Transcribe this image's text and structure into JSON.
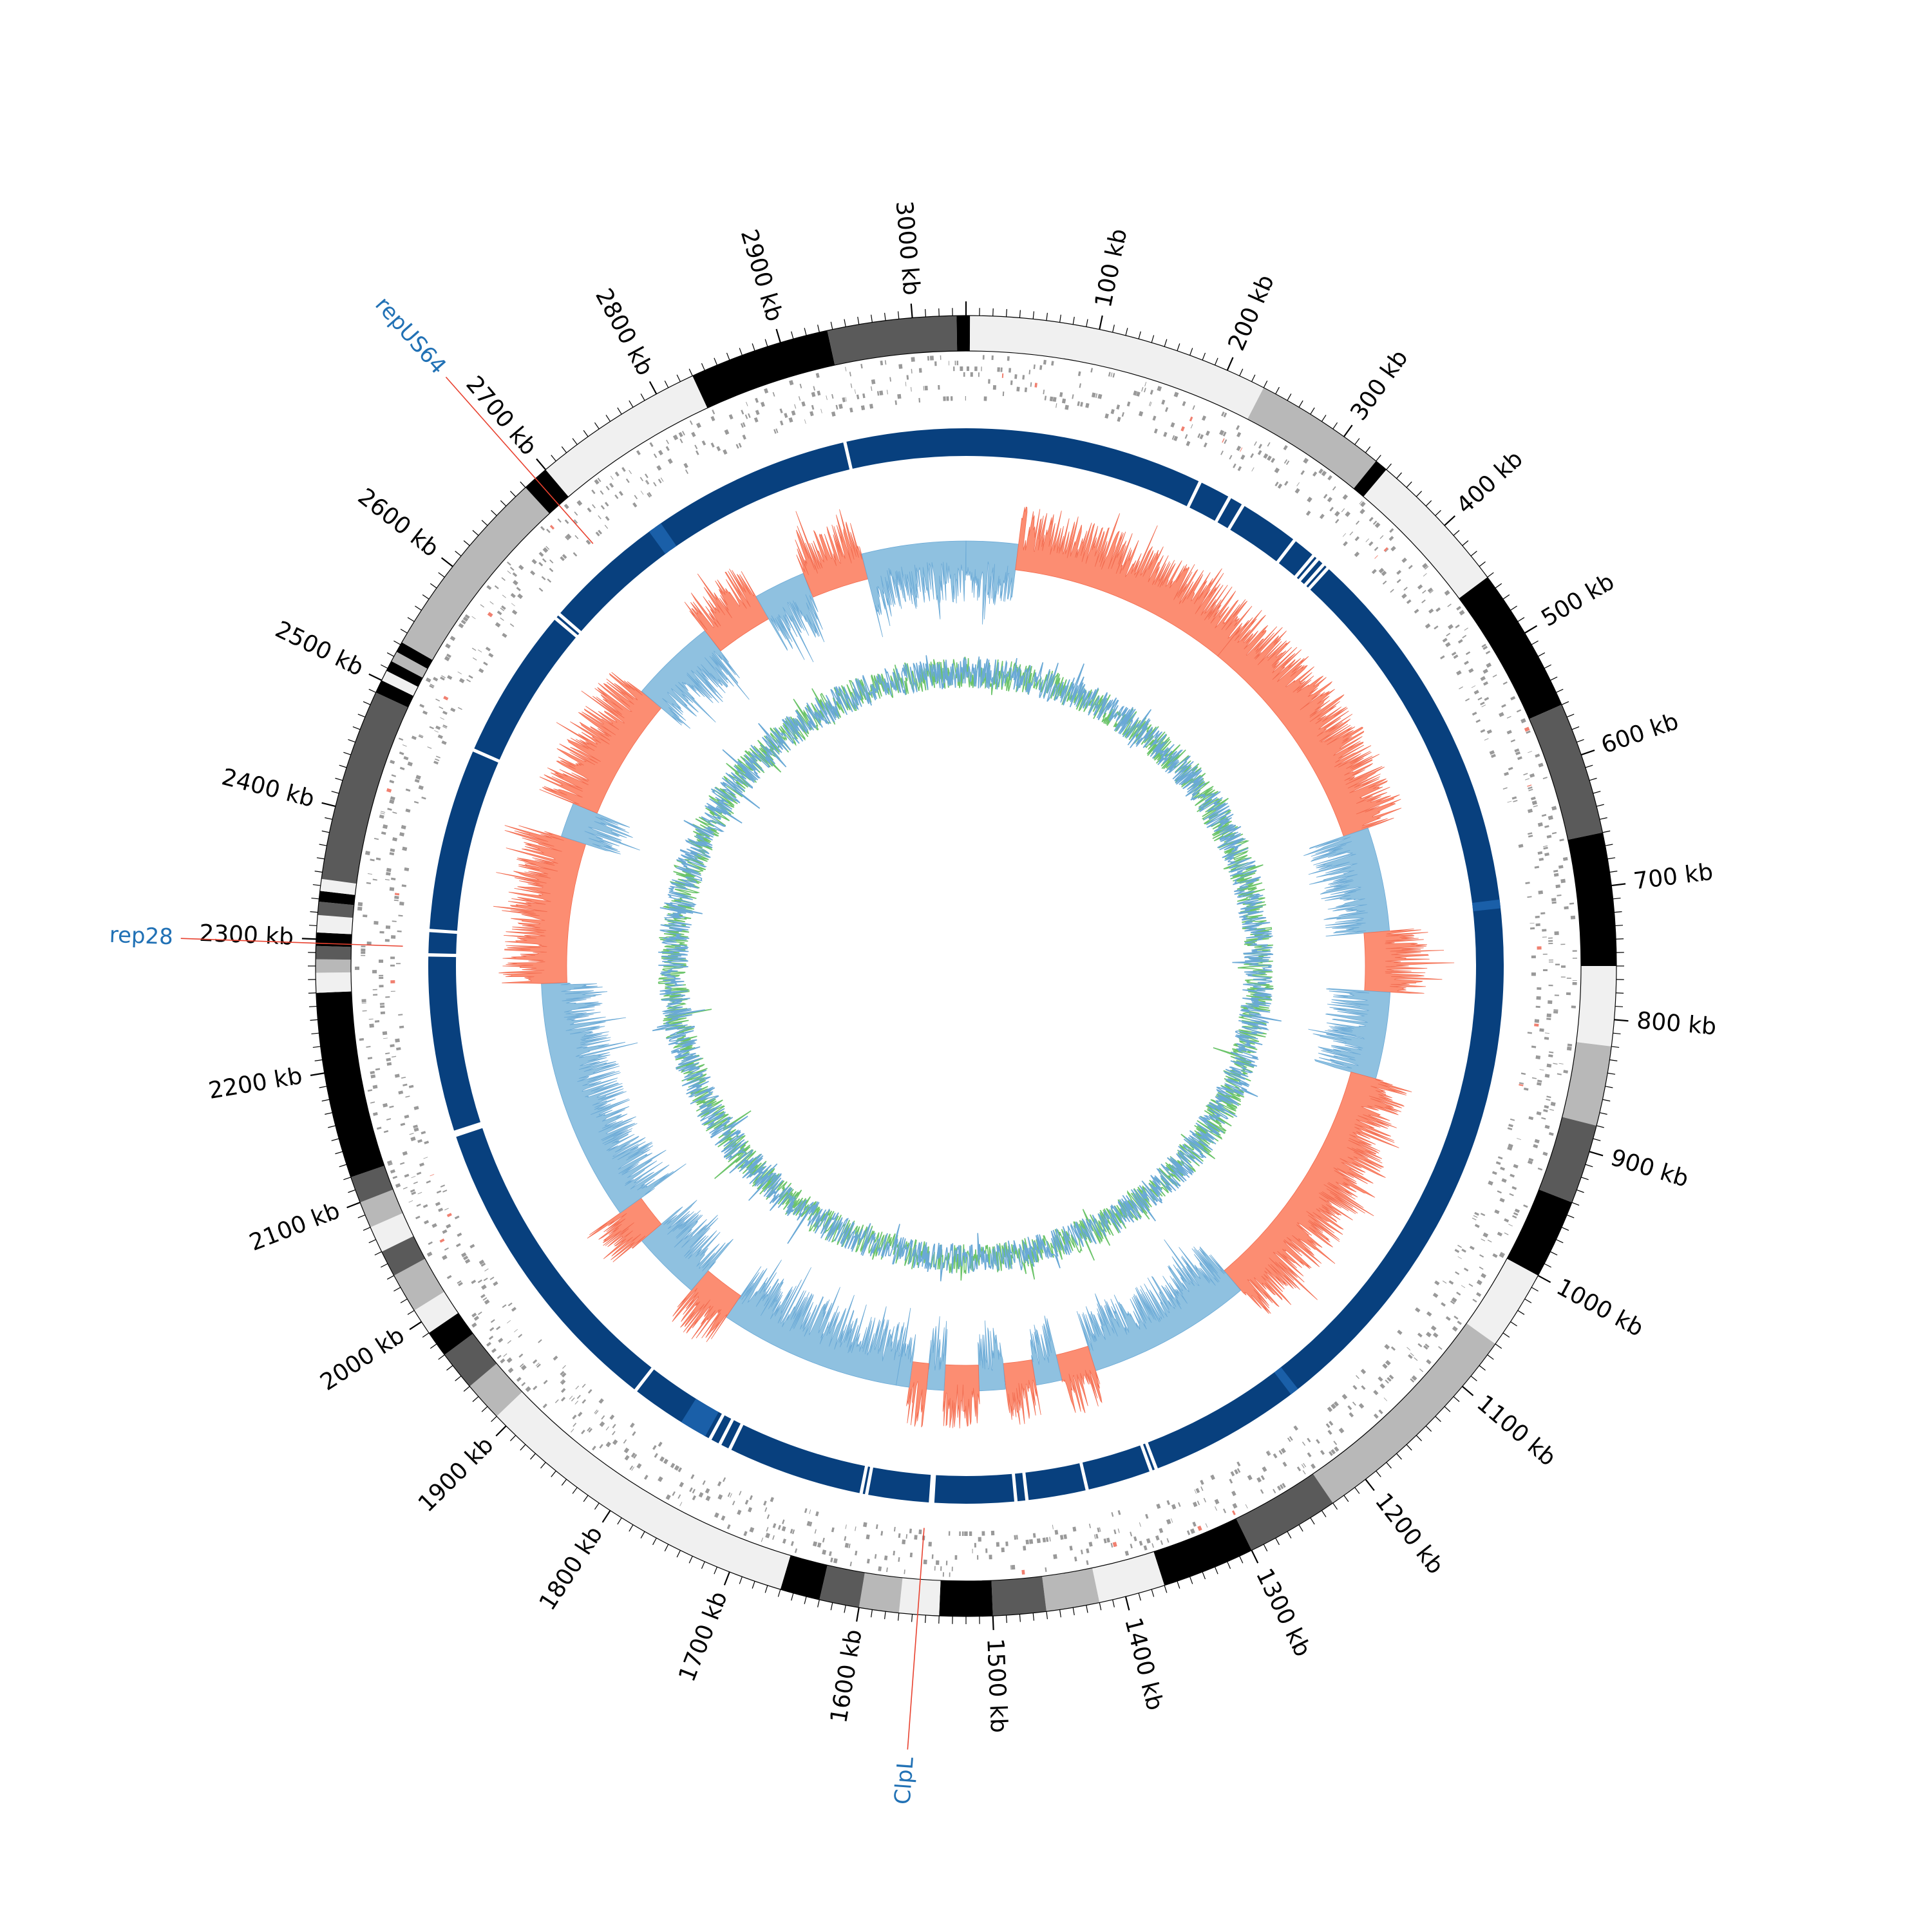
{
  "genome": {
    "length_kb": 3040,
    "unit": "kb",
    "ticks": [
      "100 kb",
      "200 kb",
      "300 kb",
      "400 kb",
      "500 kb",
      "600 kb",
      "700 kb",
      "800 kb",
      "900 kb",
      "1000 kb",
      "1100 kb",
      "1200 kb",
      "1300 kb",
      "1400 kb",
      "1500 kb",
      "1600 kb",
      "1700 kb",
      "1800 kb",
      "1900 kb",
      "2000 kb",
      "2100 kb",
      "2200 kb",
      "2300 kb",
      "2400 kb",
      "2500 kb",
      "2600 kb",
      "2700 kb",
      "2800 kb",
      "2900 kb",
      "3000 kb"
    ]
  },
  "labels": [
    {
      "text": "repUS64",
      "position_kb": 2690,
      "color": "#2171b5"
    },
    {
      "text": "rep28",
      "position_kb": 2297,
      "color": "#2171b5"
    },
    {
      "text": "ClpL",
      "position_kb": 1556,
      "color": "#2171b5"
    }
  ],
  "colors": {
    "ideogram_palette": [
      "#000000",
      "#5a5a5a",
      "#b8b8b8",
      "#f0f0f0"
    ],
    "gene_features": "#999999",
    "highlight_genes": "#f08070",
    "blocks": "#08407e",
    "blocks_alt": "#1a5fa8",
    "track_positive": "#fc8d72",
    "track_negative": "#8fc1e0",
    "skew_green": "#6cc46a",
    "skew_blue": "#6aa9d6",
    "label_line": "#e8412f"
  },
  "ideogram_bands_kb": [
    [
      0,
      3,
      "#000000"
    ],
    [
      3,
      230,
      "#f0f0f0"
    ],
    [
      230,
      330,
      "#b8b8b8"
    ],
    [
      330,
      340,
      "#000000"
    ],
    [
      340,
      450,
      "#f0f0f0"
    ],
    [
      450,
      560,
      "#000000"
    ],
    [
      560,
      660,
      "#5a5a5a"
    ],
    [
      660,
      760,
      "#000000"
    ],
    [
      760,
      820,
      "#f0f0f0"
    ],
    [
      820,
      880,
      "#b8b8b8"
    ],
    [
      880,
      940,
      "#5a5a5a"
    ],
    [
      940,
      1000,
      "#000000"
    ],
    [
      1000,
      1060,
      "#f0f0f0"
    ],
    [
      1060,
      1230,
      "#b8b8b8"
    ],
    [
      1230,
      1300,
      "#5a5a5a"
    ],
    [
      1300,
      1370,
      "#000000"
    ],
    [
      1370,
      1420,
      "#f0f0f0"
    ],
    [
      1420,
      1460,
      "#b8b8b8"
    ],
    [
      1460,
      1500,
      "#5a5a5a"
    ],
    [
      1500,
      1540,
      "#000000"
    ],
    [
      1540,
      1570,
      "#f0f0f0"
    ],
    [
      1570,
      1600,
      "#b8b8b8"
    ],
    [
      1600,
      1630,
      "#5a5a5a"
    ],
    [
      1630,
      1660,
      "#000000"
    ],
    [
      1660,
      1910,
      "#f0f0f0"
    ],
    [
      1910,
      1940,
      "#b8b8b8"
    ],
    [
      1940,
      1970,
      "#5a5a5a"
    ],
    [
      1970,
      1990,
      "#000000"
    ],
    [
      1990,
      2010,
      "#f0f0f0"
    ],
    [
      2010,
      2040,
      "#b8b8b8"
    ],
    [
      2040,
      2060,
      "#5a5a5a"
    ],
    [
      2060,
      2080,
      "#f0f0f0"
    ],
    [
      2080,
      2100,
      "#b8b8b8"
    ],
    [
      2100,
      2120,
      "#5a5a5a"
    ],
    [
      2120,
      2260,
      "#000000"
    ],
    [
      2260,
      2275,
      "#f0f0f0"
    ],
    [
      2275,
      2285,
      "#b8b8b8"
    ],
    [
      2285,
      2295,
      "#5a5a5a"
    ],
    [
      2295,
      2305,
      "#000000"
    ],
    [
      2305,
      2318,
      "#f0f0f0"
    ],
    [
      2318,
      2328,
      "#5a5a5a"
    ],
    [
      2328,
      2336,
      "#000000"
    ],
    [
      2336,
      2345,
      "#f0f0f0"
    ],
    [
      2345,
      2490,
      "#5a5a5a"
    ],
    [
      2490,
      2500,
      "#000000"
    ],
    [
      2500,
      2508,
      "#f0f0f0"
    ],
    [
      2508,
      2516,
      "#000000"
    ],
    [
      2516,
      2524,
      "#b8b8b8"
    ],
    [
      2524,
      2532,
      "#000000"
    ],
    [
      2532,
      2680,
      "#b8b8b8"
    ],
    [
      2680,
      2700,
      "#000000"
    ],
    [
      2700,
      2830,
      "#f0f0f0"
    ],
    [
      2830,
      2936,
      "#000000"
    ],
    [
      2936,
      3033,
      "#5a5a5a"
    ],
    [
      3033,
      3040,
      "#000000"
    ]
  ],
  "track_segments_kb": [
    [
      0,
      60,
      "negative"
    ],
    [
      60,
      330,
      "positive"
    ],
    [
      330,
      600,
      "positive"
    ],
    [
      600,
      720,
      "negative"
    ],
    [
      720,
      790,
      "positive"
    ],
    [
      790,
      890,
      "negative"
    ],
    [
      890,
      1180,
      "positive"
    ],
    [
      1180,
      1370,
      "negative"
    ],
    [
      1370,
      1410,
      "positive"
    ],
    [
      1410,
      1440,
      "negative"
    ],
    [
      1440,
      1475,
      "positive"
    ],
    [
      1475,
      1505,
      "negative"
    ],
    [
      1505,
      1545,
      "positive"
    ],
    [
      1545,
      1565,
      "negative"
    ],
    [
      1565,
      1585,
      "positive"
    ],
    [
      1585,
      1600,
      "negative"
    ],
    [
      1600,
      1810,
      "negative"
    ],
    [
      1810,
      1860,
      "positive"
    ],
    [
      1860,
      1940,
      "negative"
    ],
    [
      1940,
      1980,
      "positive"
    ],
    [
      1980,
      2260,
      "negative"
    ],
    [
      2260,
      2430,
      "positive"
    ],
    [
      2430,
      2470,
      "negative"
    ],
    [
      2470,
      2620,
      "positive"
    ],
    [
      2620,
      2720,
      "negative"
    ],
    [
      2720,
      2790,
      "positive"
    ],
    [
      2790,
      2850,
      "negative"
    ],
    [
      2850,
      2920,
      "positive"
    ],
    [
      2920,
      3040,
      "negative"
    ]
  ],
  "block_gaps_kb": [
    218,
    248,
    262,
    318,
    340,
    345,
    352,
    357,
    1345,
    1350,
    1410,
    1465,
    1475,
    1550,
    1552,
    1610,
    1615,
    1740,
    1750,
    1760,
    1768,
    1840,
    2125,
    2128,
    2290,
    2312,
    2480,
    2620,
    2625,
    2740,
    2930
  ]
}
